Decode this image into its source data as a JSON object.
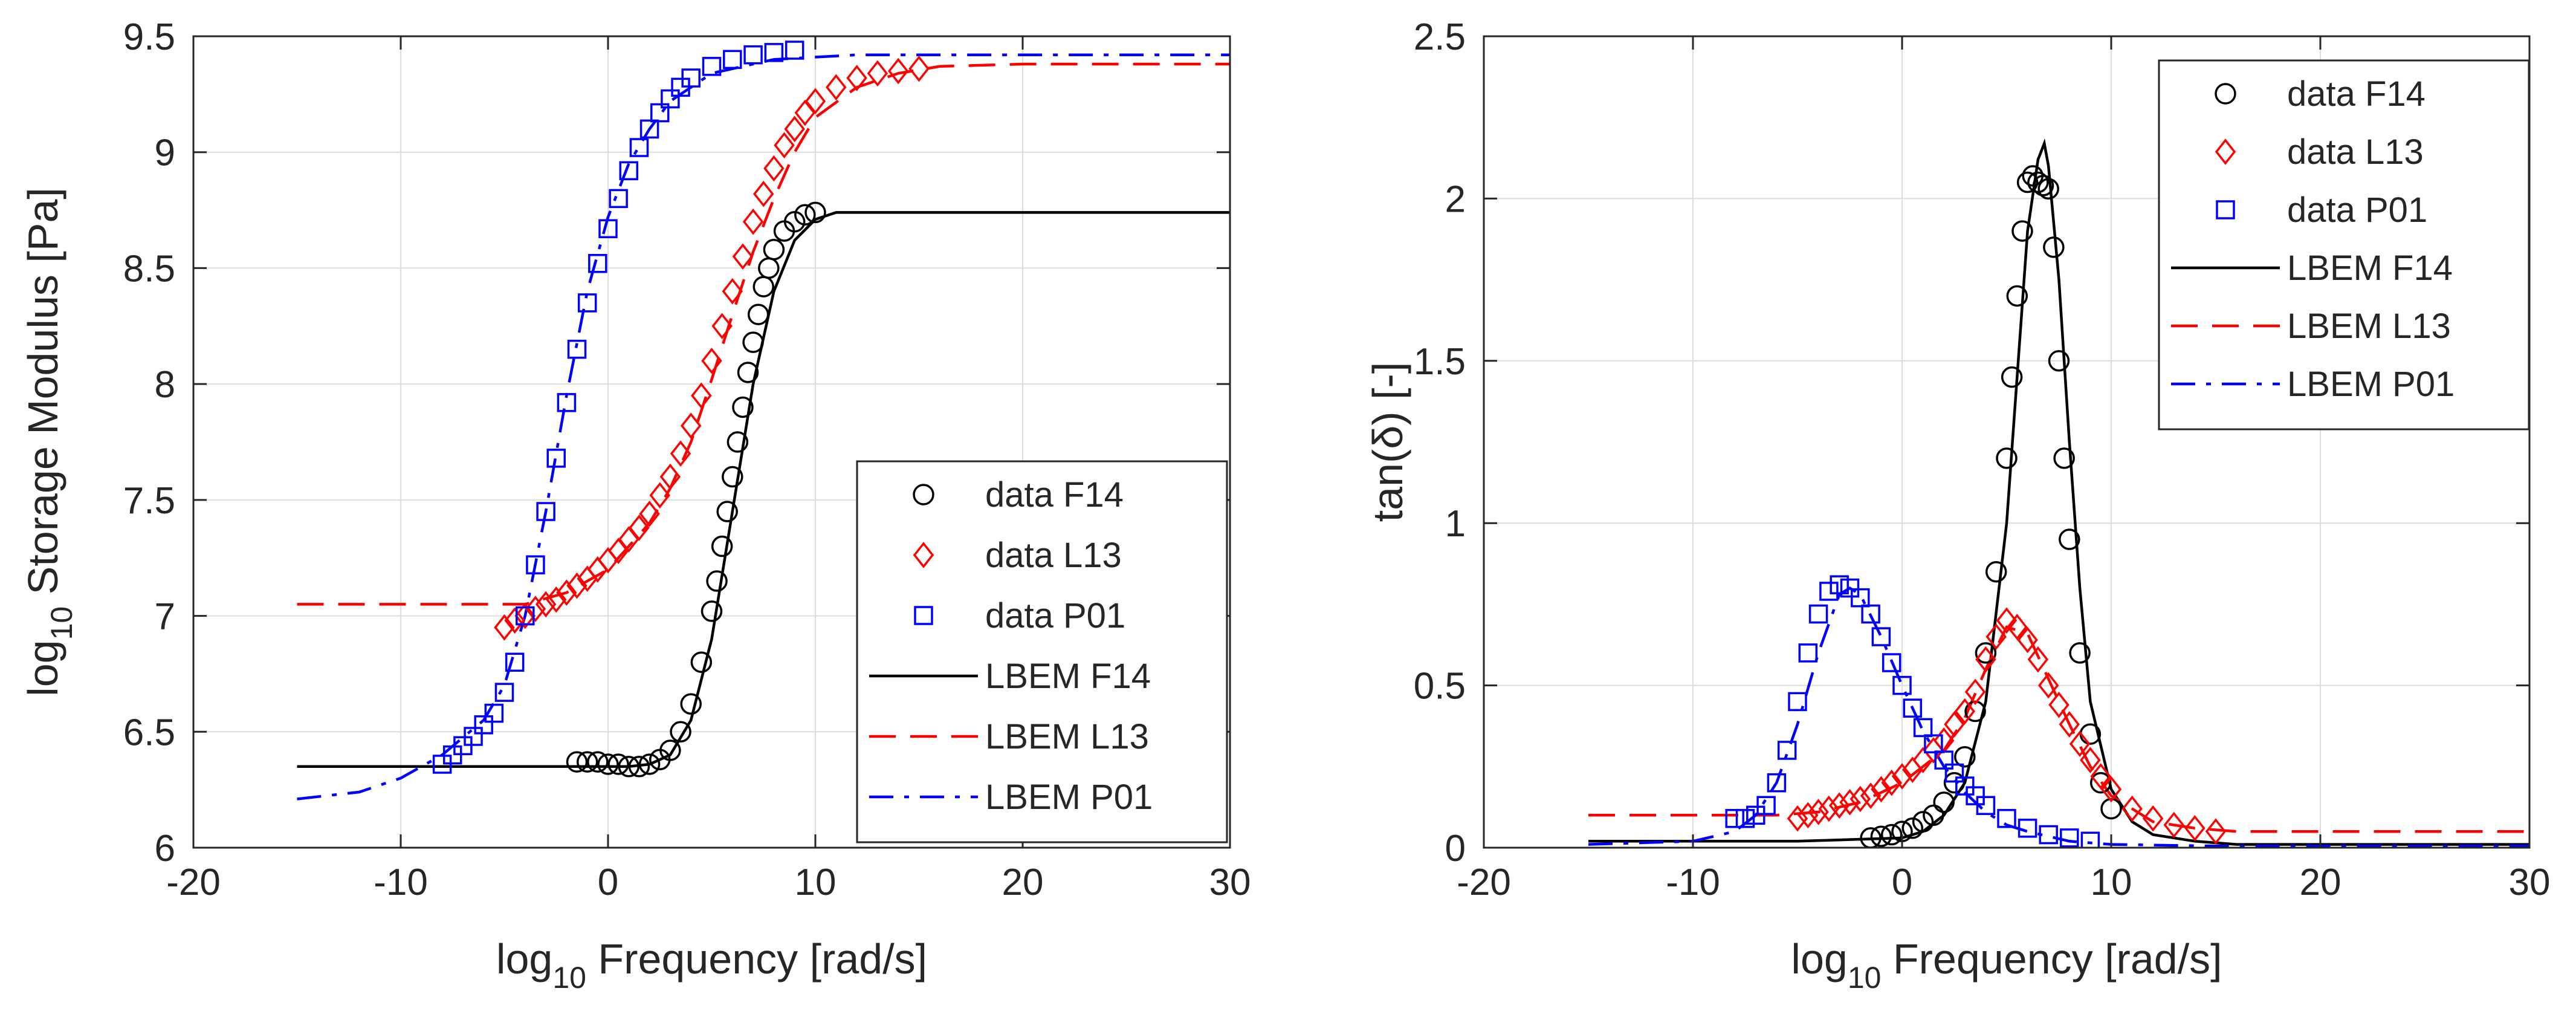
{
  "chart_data": [
    {
      "type": "line",
      "title": "",
      "xlabel": {
        "main": "log",
        "sub": "10",
        "rest": " Frequency [rad/s]"
      },
      "ylabel": {
        "main": "log",
        "sub": "10",
        "rest": " Storage Modulus [Pa]"
      },
      "xlim": [
        -20,
        30
      ],
      "ylim": [
        6,
        9.5
      ],
      "xticks": [
        -20,
        -10,
        0,
        10,
        20,
        30
      ],
      "yticks": [
        6,
        6.5,
        7,
        7.5,
        8,
        8.5,
        9,
        9.5
      ],
      "xtick_labels": [
        "-20",
        "-10",
        "0",
        "10",
        "20",
        "30"
      ],
      "ytick_labels": [
        "6",
        "6.5",
        "7",
        "7.5",
        "8",
        "8.5",
        "9",
        "9.5"
      ],
      "grid": true,
      "legend_position": "bottom-right",
      "legend": [
        {
          "label": "data F14",
          "kind": "marker",
          "marker": "circle",
          "color": "#000000"
        },
        {
          "label": "data L13",
          "kind": "marker",
          "marker": "diamond",
          "color": "#ff0000"
        },
        {
          "label": "data P01",
          "kind": "marker",
          "marker": "square",
          "color": "#0000ff"
        },
        {
          "label": "LBEM F14",
          "kind": "line",
          "dash": "solid",
          "color": "#000000"
        },
        {
          "label": "LBEM L13",
          "kind": "line",
          "dash": "dashed",
          "color": "#ff0000"
        },
        {
          "label": "LBEM P01",
          "kind": "line",
          "dash": "dashdot",
          "color": "#0000ff"
        }
      ],
      "series": [
        {
          "name": "LBEM F14",
          "kind": "line",
          "dash": "solid",
          "color": "#000000",
          "x": [
            -15,
            -2,
            0,
            1,
            2,
            3,
            4,
            5,
            6,
            7,
            8,
            9,
            10,
            11,
            15,
            20,
            30
          ],
          "y": [
            6.35,
            6.35,
            6.35,
            6.35,
            6.36,
            6.4,
            6.55,
            6.9,
            7.45,
            8.0,
            8.4,
            8.62,
            8.71,
            8.74,
            8.74,
            8.74,
            8.74
          ]
        },
        {
          "name": "LBEM L13",
          "kind": "line",
          "dash": "dashed",
          "color": "#ff0000",
          "x": [
            -15,
            -6,
            -4,
            -2,
            0,
            2,
            3,
            4,
            5,
            6,
            7,
            8,
            9,
            10,
            12,
            14,
            16,
            20,
            30
          ],
          "y": [
            7.05,
            7.05,
            7.05,
            7.1,
            7.2,
            7.4,
            7.55,
            7.75,
            8.02,
            8.3,
            8.57,
            8.8,
            9.0,
            9.15,
            9.28,
            9.34,
            9.37,
            9.38,
            9.38
          ]
        },
        {
          "name": "LBEM P01",
          "kind": "line",
          "dash": "dashdot",
          "color": "#0000ff",
          "x": [
            -15,
            -12,
            -10,
            -8,
            -6,
            -5,
            -4,
            -3,
            -2,
            -1,
            0,
            1,
            2,
            3,
            5,
            8,
            12,
            20,
            30
          ],
          "y": [
            6.21,
            6.24,
            6.3,
            6.4,
            6.55,
            6.7,
            7.0,
            7.45,
            7.95,
            8.4,
            8.72,
            8.95,
            9.1,
            9.22,
            9.34,
            9.4,
            9.42,
            9.42,
            9.42
          ]
        },
        {
          "name": "data F14",
          "kind": "marker",
          "marker": "circle",
          "color": "#000000",
          "x": [
            -1.5,
            -1,
            -0.5,
            0,
            0.5,
            1,
            1.5,
            2,
            2.5,
            3,
            3.5,
            4,
            4.5,
            5,
            5.25,
            5.5,
            5.75,
            6,
            6.25,
            6.5,
            6.75,
            7,
            7.25,
            7.5,
            7.75,
            8,
            8.5,
            9,
            9.5,
            10
          ],
          "y": [
            6.37,
            6.37,
            6.37,
            6.36,
            6.36,
            6.35,
            6.35,
            6.36,
            6.38,
            6.42,
            6.5,
            6.62,
            6.8,
            7.02,
            7.15,
            7.3,
            7.45,
            7.6,
            7.75,
            7.9,
            8.05,
            8.18,
            8.3,
            8.42,
            8.5,
            8.58,
            8.66,
            8.7,
            8.73,
            8.74
          ]
        },
        {
          "name": "data L13",
          "kind": "marker",
          "marker": "diamond",
          "color": "#ff0000",
          "x": [
            -5,
            -4.5,
            -4,
            -3.5,
            -3,
            -2.5,
            -2,
            -1.5,
            -1,
            -0.5,
            0,
            0.5,
            1,
            1.5,
            2,
            2.5,
            3,
            3.5,
            4,
            4.5,
            5,
            5.5,
            6,
            6.5,
            7,
            7.5,
            8,
            8.5,
            9,
            9.5,
            10,
            11,
            12,
            13,
            14,
            15
          ],
          "y": [
            6.95,
            6.98,
            7.0,
            7.03,
            7.05,
            7.07,
            7.1,
            7.13,
            7.16,
            7.2,
            7.24,
            7.28,
            7.33,
            7.38,
            7.44,
            7.52,
            7.6,
            7.7,
            7.82,
            7.95,
            8.1,
            8.25,
            8.4,
            8.55,
            8.7,
            8.82,
            8.93,
            9.03,
            9.1,
            9.17,
            9.22,
            9.28,
            9.32,
            9.34,
            9.35,
            9.36
          ]
        },
        {
          "name": "data P01",
          "kind": "marker",
          "marker": "square",
          "color": "#0000ff",
          "x": [
            -8,
            -7.5,
            -7,
            -6.5,
            -6,
            -5.5,
            -5,
            -4.5,
            -4,
            -3.5,
            -3,
            -2.5,
            -2,
            -1.5,
            -1,
            -0.5,
            0,
            0.5,
            1,
            1.5,
            2,
            2.5,
            3,
            3.5,
            4,
            5,
            6,
            7,
            8,
            9
          ],
          "y": [
            6.36,
            6.4,
            6.44,
            6.48,
            6.53,
            6.58,
            6.67,
            6.8,
            7.0,
            7.22,
            7.45,
            7.68,
            7.92,
            8.15,
            8.35,
            8.52,
            8.67,
            8.8,
            8.92,
            9.02,
            9.1,
            9.17,
            9.23,
            9.28,
            9.32,
            9.37,
            9.4,
            9.42,
            9.43,
            9.44
          ]
        }
      ]
    },
    {
      "type": "line",
      "title": "",
      "xlabel": {
        "main": "log",
        "sub": "10",
        "rest": " Frequency [rad/s]"
      },
      "ylabel": {
        "main": "tan(δ) [-]",
        "sub": "",
        "rest": ""
      },
      "xlim": [
        -20,
        30
      ],
      "ylim": [
        0,
        2.5
      ],
      "xticks": [
        -20,
        -10,
        0,
        10,
        20,
        30
      ],
      "yticks": [
        0,
        0.5,
        1,
        1.5,
        2,
        2.5
      ],
      "xtick_labels": [
        "-20",
        "-10",
        "0",
        "10",
        "20",
        "30"
      ],
      "ytick_labels": [
        "0",
        "0.5",
        "1",
        "1.5",
        "2",
        "2.5"
      ],
      "grid": true,
      "legend_position": "top-right",
      "legend": [
        {
          "label": "data F14",
          "kind": "marker",
          "marker": "circle",
          "color": "#000000"
        },
        {
          "label": "data L13",
          "kind": "marker",
          "marker": "diamond",
          "color": "#ff0000"
        },
        {
          "label": "data P01",
          "kind": "marker",
          "marker": "square",
          "color": "#0000ff"
        },
        {
          "label": "LBEM F14",
          "kind": "line",
          "dash": "solid",
          "color": "#000000"
        },
        {
          "label": "LBEM L13",
          "kind": "line",
          "dash": "dashed",
          "color": "#ff0000"
        },
        {
          "label": "LBEM P01",
          "kind": "line",
          "dash": "dashdot",
          "color": "#0000ff"
        }
      ],
      "series": [
        {
          "name": "LBEM F14",
          "kind": "line",
          "dash": "solid",
          "color": "#000000",
          "x": [
            -15,
            -5,
            0,
            1,
            2,
            3,
            4,
            5,
            5.5,
            6,
            6.5,
            6.8,
            7,
            7.5,
            8,
            8.5,
            9,
            10,
            11,
            12,
            14,
            16,
            20,
            30
          ],
          "y": [
            0.02,
            0.02,
            0.03,
            0.05,
            0.1,
            0.2,
            0.45,
            1.0,
            1.45,
            1.9,
            2.12,
            2.17,
            2.1,
            1.75,
            1.25,
            0.8,
            0.45,
            0.18,
            0.08,
            0.04,
            0.02,
            0.01,
            0.01,
            0.01
          ]
        },
        {
          "name": "LBEM L13",
          "kind": "line",
          "dash": "dashed",
          "color": "#ff0000",
          "x": [
            -15,
            -8,
            -6,
            -4,
            -2,
            0,
            2,
            3,
            4,
            5,
            6,
            7,
            8,
            9,
            10,
            12,
            14,
            16,
            20,
            30
          ],
          "y": [
            0.1,
            0.1,
            0.1,
            0.11,
            0.14,
            0.2,
            0.3,
            0.4,
            0.55,
            0.68,
            0.66,
            0.52,
            0.38,
            0.25,
            0.16,
            0.08,
            0.06,
            0.05,
            0.05,
            0.05
          ]
        },
        {
          "name": "LBEM P01",
          "kind": "line",
          "dash": "dashdot",
          "color": "#0000ff",
          "x": [
            -15,
            -10,
            -8,
            -7,
            -6,
            -5,
            -4,
            -3,
            -2.5,
            -2,
            -1,
            0,
            1,
            2,
            3,
            4,
            5,
            6,
            8,
            10,
            15,
            20,
            30
          ],
          "y": [
            0.01,
            0.02,
            0.05,
            0.1,
            0.2,
            0.38,
            0.6,
            0.78,
            0.8,
            0.78,
            0.65,
            0.5,
            0.36,
            0.25,
            0.17,
            0.11,
            0.07,
            0.05,
            0.02,
            0.01,
            0.005,
            0.005,
            0.005
          ]
        },
        {
          "name": "data F14",
          "kind": "marker",
          "marker": "circle",
          "color": "#000000",
          "x": [
            -1.5,
            -1,
            -0.5,
            0,
            0.5,
            1,
            1.5,
            2,
            2.5,
            3,
            3.5,
            4,
            4.5,
            5,
            5.25,
            5.5,
            5.75,
            6,
            6.25,
            6.5,
            6.75,
            7,
            7.25,
            7.5,
            7.75,
            8,
            8.5,
            9,
            9.5,
            10
          ],
          "y": [
            0.03,
            0.035,
            0.04,
            0.05,
            0.06,
            0.08,
            0.1,
            0.14,
            0.2,
            0.28,
            0.42,
            0.6,
            0.85,
            1.2,
            1.45,
            1.7,
            1.9,
            2.05,
            2.07,
            2.05,
            2.04,
            2.03,
            1.85,
            1.5,
            1.2,
            0.95,
            0.6,
            0.35,
            0.2,
            0.12
          ]
        },
        {
          "name": "data L13",
          "kind": "marker",
          "marker": "diamond",
          "color": "#ff0000",
          "x": [
            -5,
            -4.5,
            -4,
            -3.5,
            -3,
            -2.5,
            -2,
            -1.5,
            -1,
            -0.5,
            0,
            0.5,
            1,
            1.5,
            2,
            2.5,
            3,
            3.5,
            4,
            4.5,
            5,
            5.5,
            6,
            6.5,
            7,
            7.5,
            8,
            8.5,
            9,
            9.5,
            10,
            11,
            12,
            13,
            14,
            15
          ],
          "y": [
            0.09,
            0.1,
            0.11,
            0.12,
            0.13,
            0.14,
            0.15,
            0.16,
            0.18,
            0.2,
            0.22,
            0.24,
            0.27,
            0.3,
            0.33,
            0.38,
            0.42,
            0.48,
            0.58,
            0.65,
            0.7,
            0.68,
            0.64,
            0.58,
            0.5,
            0.44,
            0.38,
            0.32,
            0.27,
            0.22,
            0.18,
            0.12,
            0.09,
            0.07,
            0.06,
            0.05
          ]
        },
        {
          "name": "data P01",
          "kind": "marker",
          "marker": "square",
          "color": "#0000ff",
          "x": [
            -8,
            -7.5,
            -7,
            -6.5,
            -6,
            -5.5,
            -5,
            -4.5,
            -4,
            -3.5,
            -3,
            -2.5,
            -2,
            -1.5,
            -1,
            -0.5,
            0,
            0.5,
            1,
            1.5,
            2,
            2.5,
            3,
            3.5,
            4,
            5,
            6,
            7,
            8,
            9
          ],
          "y": [
            0.09,
            0.09,
            0.1,
            0.13,
            0.2,
            0.3,
            0.45,
            0.6,
            0.72,
            0.79,
            0.81,
            0.8,
            0.77,
            0.72,
            0.65,
            0.57,
            0.5,
            0.43,
            0.37,
            0.32,
            0.27,
            0.23,
            0.19,
            0.16,
            0.13,
            0.09,
            0.06,
            0.04,
            0.03,
            0.02
          ]
        }
      ]
    }
  ]
}
